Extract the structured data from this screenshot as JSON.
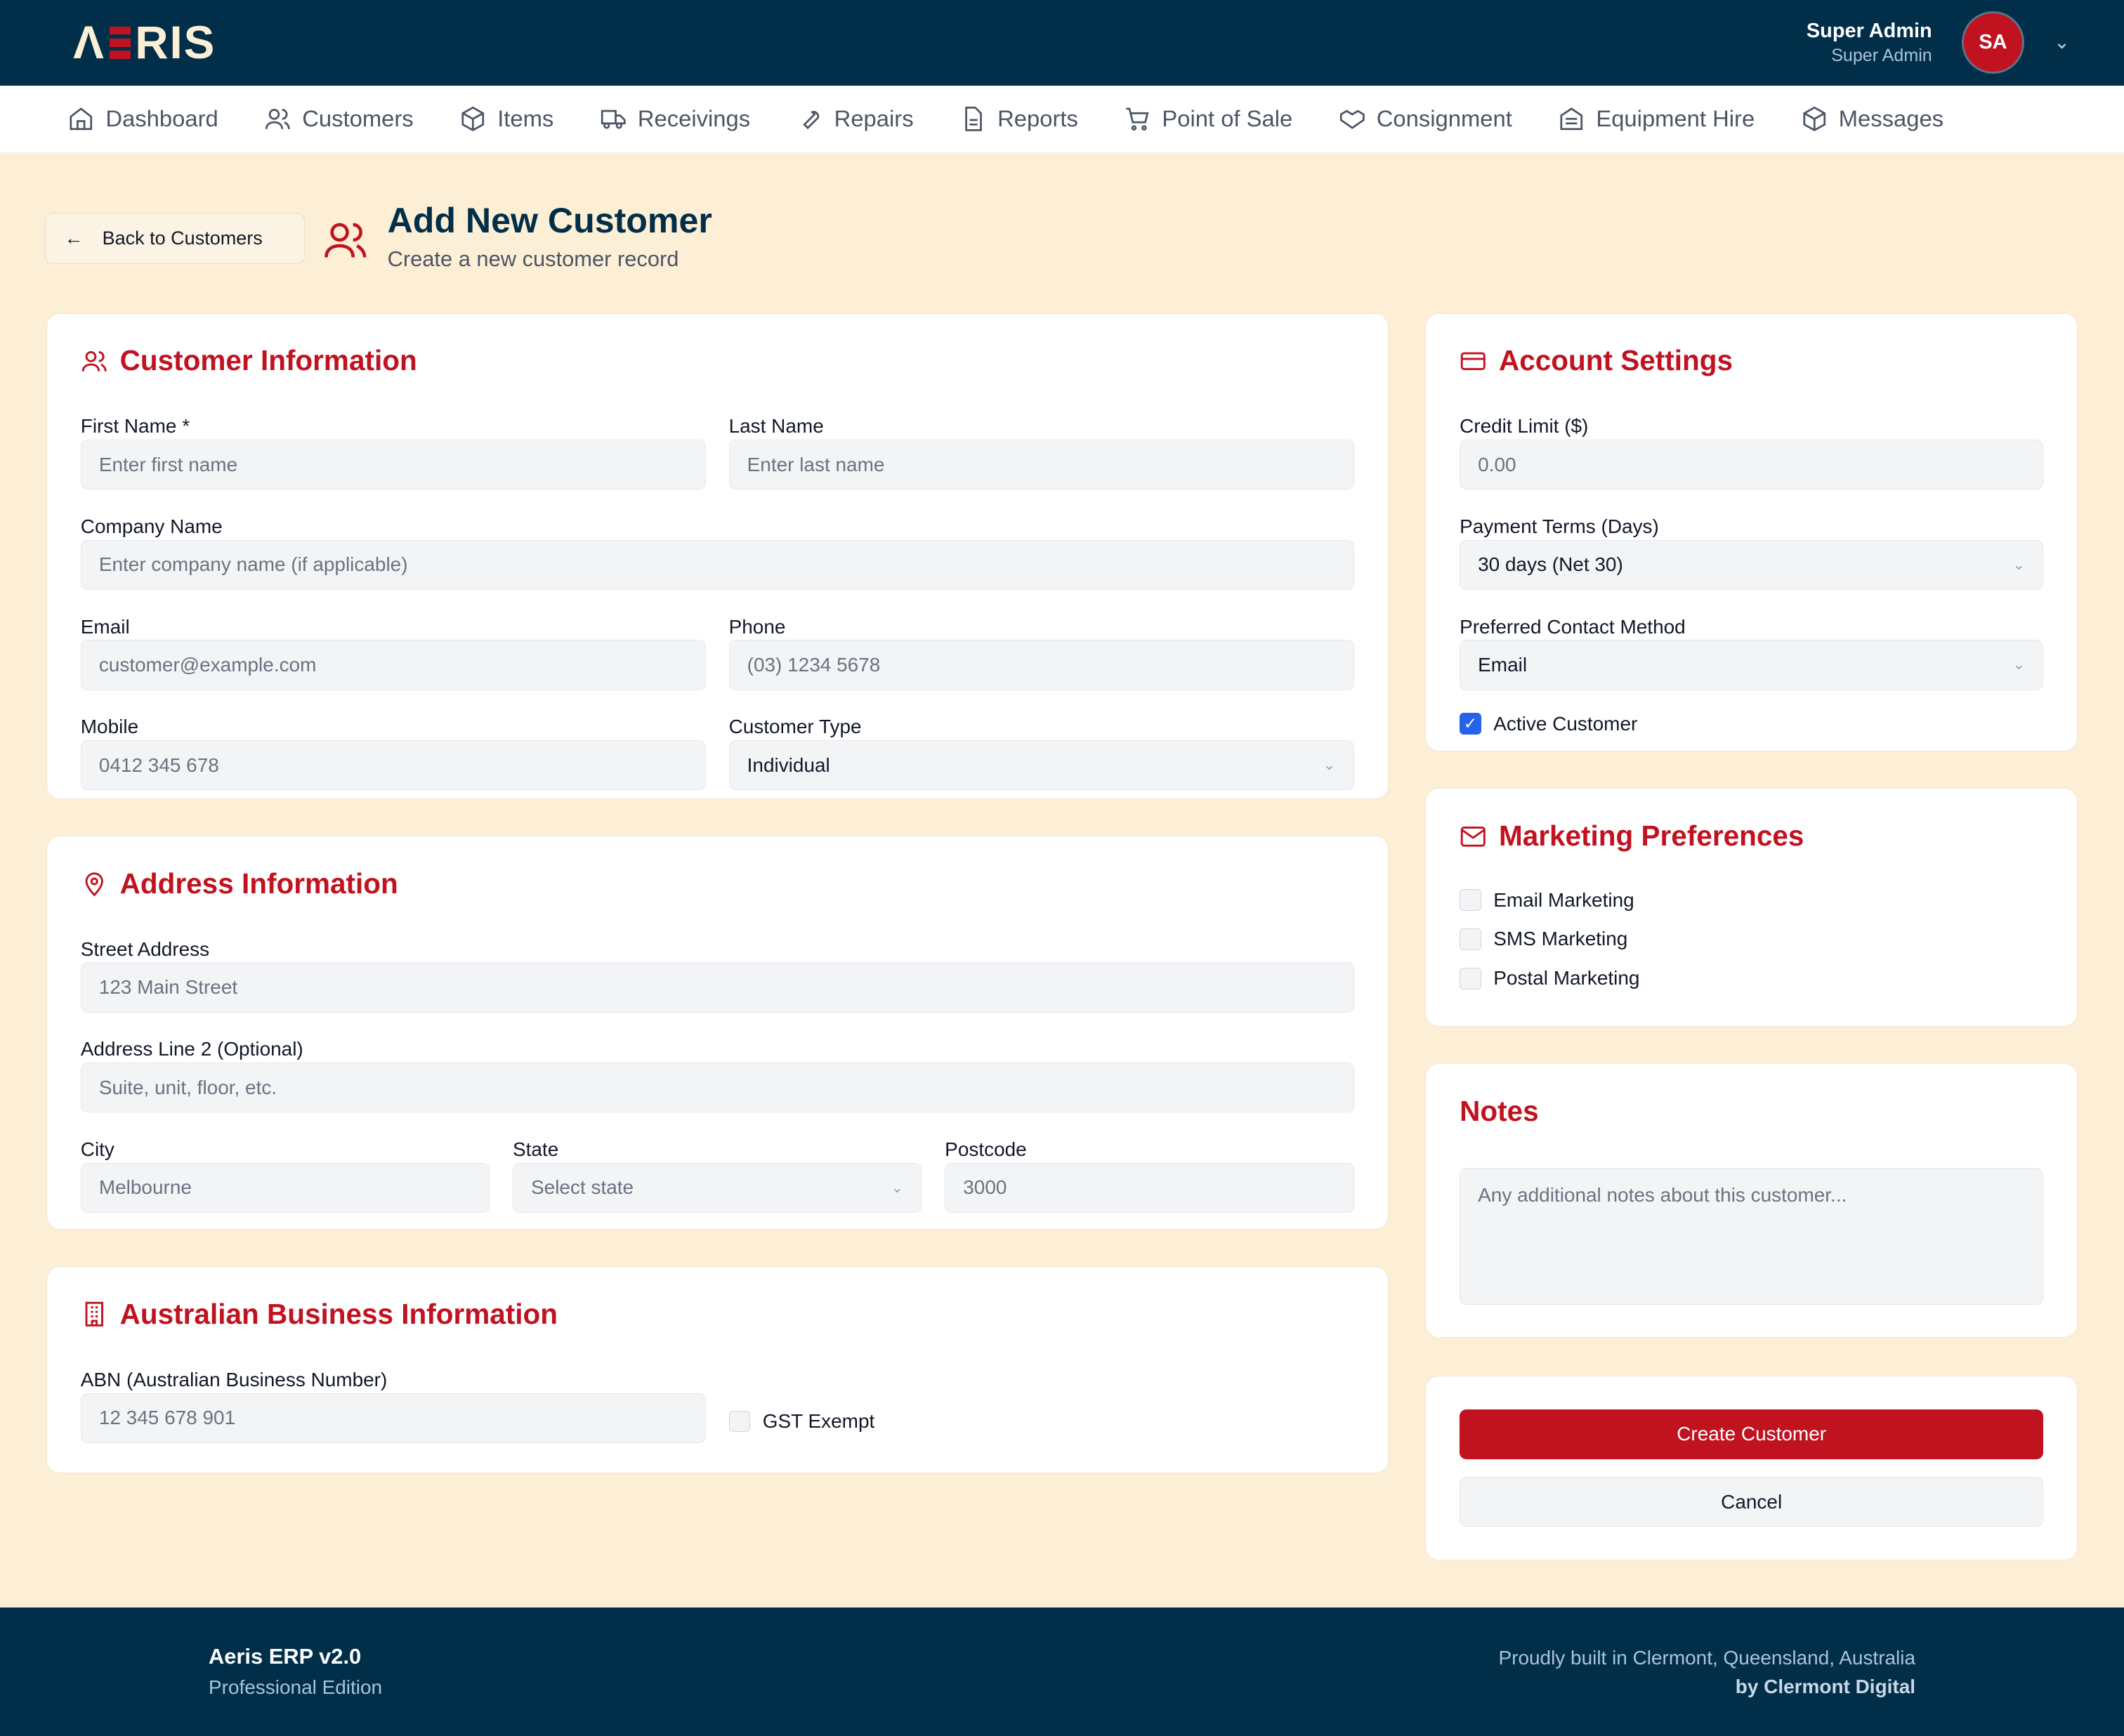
{
  "header": {
    "logo": "AERIS",
    "user_name": "Super Admin",
    "user_role": "Super Admin",
    "avatar_initials": "SA"
  },
  "nav": [
    {
      "label": "Dashboard",
      "icon": "home-icon"
    },
    {
      "label": "Customers",
      "icon": "users-icon"
    },
    {
      "label": "Items",
      "icon": "package-icon"
    },
    {
      "label": "Receivings",
      "icon": "truck-icon"
    },
    {
      "label": "Repairs",
      "icon": "wrench-icon"
    },
    {
      "label": "Reports",
      "icon": "file-icon"
    },
    {
      "label": "Point of Sale",
      "icon": "cart-icon"
    },
    {
      "label": "Consignment",
      "icon": "handshake-icon"
    },
    {
      "label": "Equipment Hire",
      "icon": "building-icon"
    },
    {
      "label": "Messages",
      "icon": "package-icon"
    }
  ],
  "page": {
    "back": "Back to Customers",
    "title": "Add New Customer",
    "subtitle": "Create a new customer record"
  },
  "customer": {
    "title": "Customer Information",
    "first_name_label": "First Name *",
    "first_name_ph": "Enter first name",
    "last_name_label": "Last Name",
    "last_name_ph": "Enter last name",
    "company_label": "Company Name",
    "company_ph": "Enter company name (if applicable)",
    "email_label": "Email",
    "email_ph": "customer@example.com",
    "phone_label": "Phone",
    "phone_ph": "(03) 1234 5678",
    "mobile_label": "Mobile",
    "mobile_ph": "0412 345 678",
    "type_label": "Customer Type",
    "type_value": "Individual"
  },
  "address": {
    "title": "Address Information",
    "street_label": "Street Address",
    "street_ph": "123 Main Street",
    "line2_label": "Address Line 2 (Optional)",
    "line2_ph": "Suite, unit, floor, etc.",
    "city_label": "City",
    "city_ph": "Melbourne",
    "state_label": "State",
    "state_value": "Select state",
    "postcode_label": "Postcode",
    "postcode_ph": "3000"
  },
  "business": {
    "title": "Australian Business Information",
    "abn_label": "ABN (Australian Business Number)",
    "abn_ph": "12 345 678 901",
    "gst_label": "GST Exempt",
    "gst_checked": false
  },
  "account": {
    "title": "Account Settings",
    "credit_label": "Credit Limit ($)",
    "credit_ph": "0.00",
    "terms_label": "Payment Terms (Days)",
    "terms_value": "30 days (Net 30)",
    "contact_label": "Preferred Contact Method",
    "contact_value": "Email",
    "active_label": "Active Customer",
    "active_checked": true
  },
  "marketing": {
    "title": "Marketing Preferences",
    "items": [
      {
        "label": "Email Marketing",
        "checked": false
      },
      {
        "label": "SMS Marketing",
        "checked": false
      },
      {
        "label": "Postal Marketing",
        "checked": false
      }
    ]
  },
  "notes": {
    "title": "Notes",
    "placeholder": "Any additional notes about this customer..."
  },
  "actions": {
    "create": "Create Customer",
    "cancel": "Cancel"
  },
  "footer": {
    "product": "Aeris ERP v2.0",
    "edition": "Professional Edition",
    "built": "Proudly built in Clermont, Queensland, Australia",
    "by": "by Clermont Digital"
  },
  "colors": {
    "navy": "#012f49",
    "accent": "#c1121f",
    "background": "#fdefd6"
  }
}
